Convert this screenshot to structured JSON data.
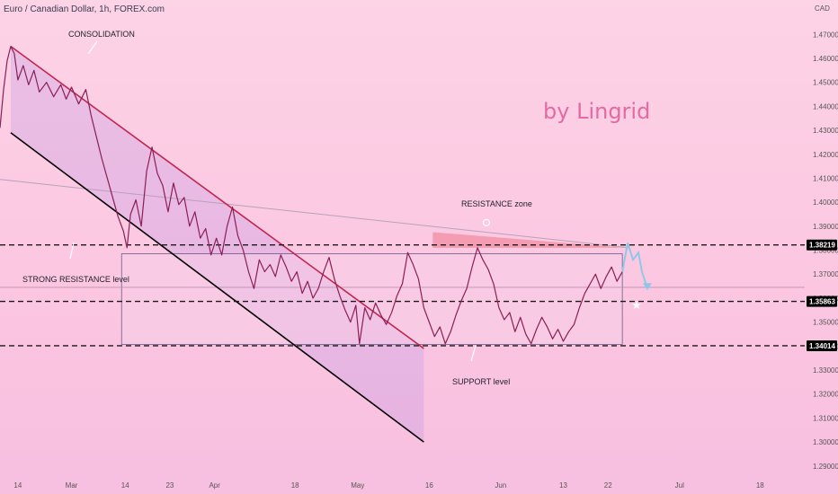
{
  "header": {
    "title": "Euro / Canadian Dollar, 1h, FOREX.com"
  },
  "watermark": "by Lingrid",
  "chart_data": {
    "type": "line",
    "title": "",
    "currency": "CAD",
    "xlabel": "",
    "ylabel": "",
    "ylim": [
      1.2843,
      1.4791
    ],
    "y_ticks": [
      1.29,
      1.3,
      1.31,
      1.32,
      1.33,
      1.34,
      1.35,
      1.36,
      1.37,
      1.38,
      1.39,
      1.4,
      1.41,
      1.42,
      1.43,
      1.44,
      1.45,
      1.46,
      1.47
    ],
    "y_tick_labels": [
      "1.29000",
      "1.30000",
      "1.31000",
      "1.32000",
      "1.33000",
      "1.34000",
      "1.35000",
      "1.36000",
      "1.37000",
      "1.38000",
      "1.39000",
      "1.40000",
      "1.41000",
      "1.42000",
      "1.43000",
      "1.44000",
      "1.45000",
      "1.46000",
      "1.47000"
    ],
    "x_ticks": [
      {
        "label": "14",
        "x": 1.0
      },
      {
        "label": "Mar",
        "x": 4.0
      },
      {
        "label": "14",
        "x": 7.0
      },
      {
        "label": "23",
        "x": 9.5
      },
      {
        "label": "Apr",
        "x": 12.0
      },
      {
        "label": "18",
        "x": 16.5
      },
      {
        "label": "May",
        "x": 20.0
      },
      {
        "label": "16",
        "x": 24.0
      },
      {
        "label": "Jun",
        "x": 28.0
      },
      {
        "label": "13",
        "x": 31.5
      },
      {
        "label": "22",
        "x": 34.0
      },
      {
        "label": "Jul",
        "x": 38.0
      },
      {
        "label": "18",
        "x": 42.5
      }
    ],
    "grid": false,
    "series": [
      {
        "color": "#8a1f55",
        "points": [
          [
            0.0,
            1.431
          ],
          [
            0.2,
            1.447
          ],
          [
            0.4,
            1.459
          ],
          [
            0.6,
            1.465
          ],
          [
            0.8,
            1.462
          ],
          [
            1.0,
            1.451
          ],
          [
            1.3,
            1.457
          ],
          [
            1.6,
            1.449
          ],
          [
            1.9,
            1.455
          ],
          [
            2.2,
            1.446
          ],
          [
            2.6,
            1.45
          ],
          [
            3.0,
            1.444
          ],
          [
            3.4,
            1.449
          ],
          [
            3.7,
            1.443
          ],
          [
            4.0,
            1.448
          ],
          [
            4.4,
            1.441
          ],
          [
            4.8,
            1.447
          ],
          [
            5.1,
            1.436
          ],
          [
            5.4,
            1.427
          ],
          [
            5.7,
            1.418
          ],
          [
            6.0,
            1.41
          ],
          [
            6.3,
            1.402
          ],
          [
            6.6,
            1.394
          ],
          [
            6.9,
            1.388
          ],
          [
            7.1,
            1.381
          ],
          [
            7.3,
            1.395
          ],
          [
            7.6,
            1.401
          ],
          [
            7.9,
            1.39
          ],
          [
            8.2,
            1.413
          ],
          [
            8.5,
            1.423
          ],
          [
            8.8,
            1.412
          ],
          [
            9.1,
            1.407
          ],
          [
            9.4,
            1.396
          ],
          [
            9.7,
            1.408
          ],
          [
            10.0,
            1.399
          ],
          [
            10.3,
            1.402
          ],
          [
            10.6,
            1.39
          ],
          [
            10.9,
            1.396
          ],
          [
            11.2,
            1.385
          ],
          [
            11.5,
            1.389
          ],
          [
            11.8,
            1.378
          ],
          [
            12.1,
            1.385
          ],
          [
            12.4,
            1.378
          ],
          [
            12.7,
            1.39
          ],
          [
            13.0,
            1.398
          ],
          [
            13.3,
            1.386
          ],
          [
            13.6,
            1.38
          ],
          [
            13.9,
            1.371
          ],
          [
            14.2,
            1.364
          ],
          [
            14.5,
            1.376
          ],
          [
            14.8,
            1.371
          ],
          [
            15.1,
            1.374
          ],
          [
            15.4,
            1.369
          ],
          [
            15.7,
            1.378
          ],
          [
            16.0,
            1.373
          ],
          [
            16.3,
            1.367
          ],
          [
            16.6,
            1.371
          ],
          [
            16.9,
            1.362
          ],
          [
            17.2,
            1.367
          ],
          [
            17.5,
            1.36
          ],
          [
            17.8,
            1.364
          ],
          [
            18.1,
            1.371
          ],
          [
            18.4,
            1.377
          ],
          [
            18.7,
            1.368
          ],
          [
            19.0,
            1.361
          ],
          [
            19.3,
            1.355
          ],
          [
            19.6,
            1.35
          ],
          [
            19.9,
            1.357
          ],
          [
            20.1,
            1.341
          ],
          [
            20.4,
            1.356
          ],
          [
            20.7,
            1.351
          ],
          [
            21.0,
            1.358
          ],
          [
            21.3,
            1.353
          ],
          [
            21.6,
            1.349
          ],
          [
            21.9,
            1.354
          ],
          [
            22.2,
            1.361
          ],
          [
            22.5,
            1.366
          ],
          [
            22.8,
            1.379
          ],
          [
            23.1,
            1.374
          ],
          [
            23.4,
            1.368
          ],
          [
            23.7,
            1.356
          ],
          [
            24.0,
            1.35
          ],
          [
            24.3,
            1.344
          ],
          [
            24.6,
            1.348
          ],
          [
            24.9,
            1.341
          ],
          [
            25.2,
            1.346
          ],
          [
            25.5,
            1.353
          ],
          [
            25.8,
            1.359
          ],
          [
            26.1,
            1.364
          ],
          [
            26.4,
            1.373
          ],
          [
            26.7,
            1.381
          ],
          [
            27.0,
            1.376
          ],
          [
            27.3,
            1.372
          ],
          [
            27.6,
            1.366
          ],
          [
            27.9,
            1.356
          ],
          [
            28.2,
            1.351
          ],
          [
            28.5,
            1.354
          ],
          [
            28.8,
            1.346
          ],
          [
            29.1,
            1.352
          ],
          [
            29.4,
            1.345
          ],
          [
            29.7,
            1.341
          ],
          [
            30.0,
            1.347
          ],
          [
            30.3,
            1.352
          ],
          [
            30.6,
            1.348
          ],
          [
            30.9,
            1.343
          ],
          [
            31.2,
            1.347
          ],
          [
            31.5,
            1.342
          ],
          [
            31.8,
            1.346
          ],
          [
            32.1,
            1.349
          ],
          [
            32.4,
            1.356
          ],
          [
            32.7,
            1.362
          ],
          [
            33.0,
            1.366
          ],
          [
            33.3,
            1.37
          ],
          [
            33.6,
            1.364
          ],
          [
            33.9,
            1.369
          ],
          [
            34.2,
            1.373
          ],
          [
            34.5,
            1.367
          ],
          [
            34.8,
            1.371
          ]
        ]
      }
    ],
    "projection": {
      "color": "#8ec8e8",
      "points": [
        [
          34.8,
          1.371
        ],
        [
          35.1,
          1.383
        ],
        [
          35.4,
          1.376
        ],
        [
          35.7,
          1.379
        ],
        [
          35.9,
          1.371
        ],
        [
          36.2,
          1.364
        ]
      ]
    },
    "price_labels": [
      {
        "label": "1.38219",
        "value": 1.38219
      },
      {
        "label": "1.35863",
        "value": 1.35863
      },
      {
        "label": "1.34014",
        "value": 1.34014
      }
    ],
    "horizontal_levels": [
      {
        "value": 1.38219,
        "style": "dashed"
      },
      {
        "value": 1.35863,
        "style": "dashed"
      },
      {
        "value": 1.34014,
        "style": "dashed"
      }
    ],
    "channel": {
      "upper": [
        [
          0.6,
          1.465
        ],
        [
          23.7,
          1.339
        ]
      ],
      "lower": [
        [
          0.6,
          1.429
        ],
        [
          23.7,
          1.3
        ]
      ]
    },
    "range_box": {
      "x0": 6.8,
      "x1": 34.8,
      "top": 1.3785,
      "bottom": 1.3407
    },
    "resistance_zone": {
      "x0": 24.2,
      "x1": 35.0,
      "top": 1.3875,
      "bottom": 1.381
    }
  },
  "annotations": {
    "consolidation": "CONSOLIDATION",
    "resistance_zone": "RESISTANCE zone",
    "strong_resistance": "STRONG RESISTANCE level",
    "support": "SUPPORT level"
  },
  "colors": {
    "price_line": "#8a1f55",
    "channel_upper": "#c0264f",
    "channel_lower": "#000000",
    "price_label_bg": "#000000",
    "resistance_fill": "#f28da0",
    "watermark": "#e56aa3",
    "projection": "#8ec8e8"
  }
}
